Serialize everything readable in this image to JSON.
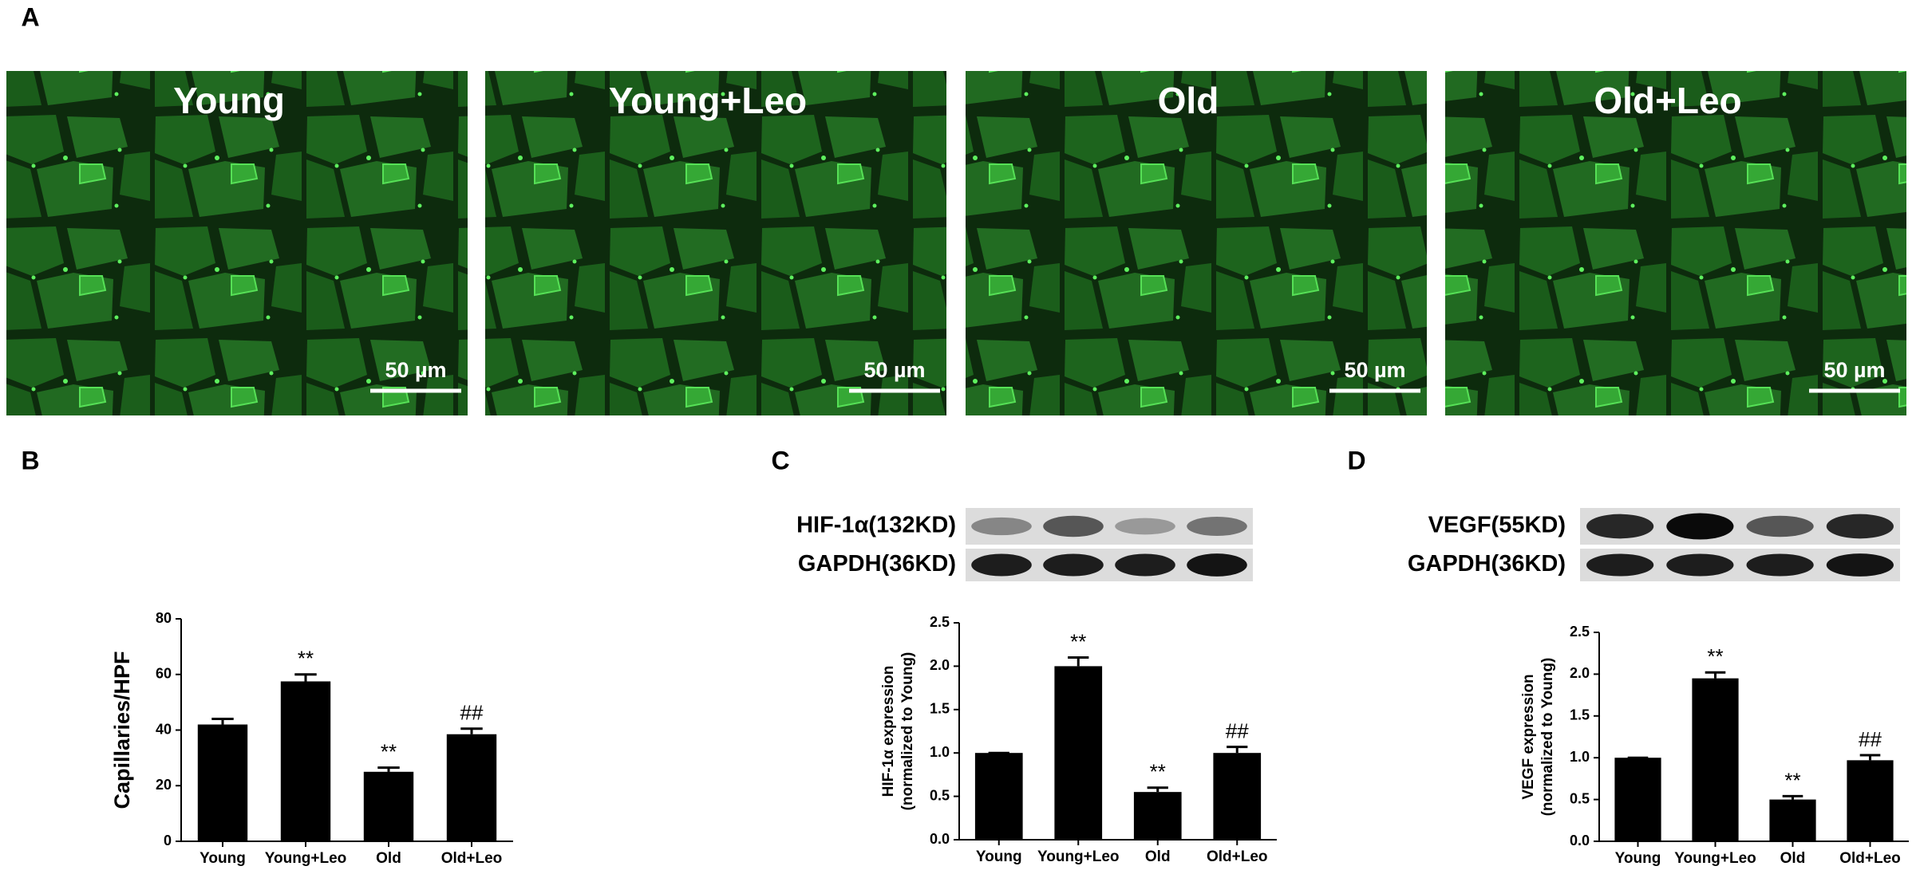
{
  "panel_labels": [
    "A",
    "B",
    "C",
    "D"
  ],
  "images": [
    {
      "label": "Young",
      "scale_bar": "50 µm"
    },
    {
      "label": "Young+Leo",
      "scale_bar": "50 µm"
    },
    {
      "label": "Old",
      "scale_bar": "50 µm"
    },
    {
      "label": "Old+Leo",
      "scale_bar": "50 µm"
    }
  ],
  "blots": [
    {
      "labels": [
        "HIF-1α(132KD)",
        "GAPDH(36KD)"
      ]
    },
    {
      "labels": [
        "VEGF(55KD)",
        "GAPDH(36KD)"
      ]
    }
  ],
  "chart_data": [
    {
      "type": "bar",
      "ylabel": "Capillaries/HPF",
      "color": "#000000",
      "categories": [
        "Young",
        "Young+Leo",
        "Old",
        "Old+Leo"
      ],
      "values": [
        42,
        57.5,
        25,
        38.5
      ],
      "errors": [
        2,
        2.5,
        1.5,
        2
      ],
      "annotations": [
        null,
        "**",
        "**",
        "##"
      ],
      "ylim": [
        0,
        80
      ],
      "yticks": [
        0,
        20,
        40,
        60,
        80
      ]
    },
    {
      "type": "bar",
      "ylabel": [
        "HIF-1α  expression",
        "(normalized to Young)"
      ],
      "color": "#000000",
      "categories": [
        "Young",
        "Young+Leo",
        "Old",
        "Old+Leo"
      ],
      "values": [
        1.0,
        2.0,
        0.55,
        1.0
      ],
      "errors": [
        0,
        0.1,
        0.05,
        0.07
      ],
      "annotations": [
        null,
        "**",
        "**",
        "##"
      ],
      "ylim": [
        0,
        2.5
      ],
      "yticks": [
        {
          "value": 0,
          "label": "0.0"
        },
        {
          "value": 0.5,
          "label": "0.5"
        },
        {
          "value": 1,
          "label": "1.0"
        },
        {
          "value": 1.5,
          "label": "1.5"
        },
        {
          "value": 2,
          "label": "2.0"
        },
        {
          "value": 2.5,
          "label": "2.5"
        }
      ]
    },
    {
      "type": "bar",
      "ylabel": [
        "VEGF expression",
        "(normalized to Young)"
      ],
      "color": "#000000",
      "categories": [
        "Young",
        "Young+Leo",
        "Old",
        "Old+Leo"
      ],
      "values": [
        1.0,
        1.95,
        0.5,
        0.97
      ],
      "errors": [
        0,
        0.07,
        0.04,
        0.06
      ],
      "annotations": [
        null,
        "**",
        "**",
        "##"
      ],
      "ylim": [
        0,
        2.5
      ],
      "yticks": [
        {
          "value": 0,
          "label": "0.0"
        },
        {
          "value": 0.5,
          "label": "0.5"
        },
        {
          "value": 1,
          "label": "1.0"
        },
        {
          "value": 1.5,
          "label": "1.5"
        },
        {
          "value": 2,
          "label": "2.0"
        },
        {
          "value": 2.5,
          "label": "2.5"
        }
      ]
    }
  ]
}
